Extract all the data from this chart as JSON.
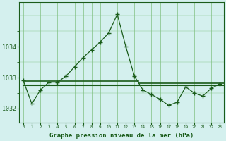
{
  "hours": [
    0,
    1,
    2,
    3,
    4,
    5,
    6,
    7,
    8,
    9,
    10,
    11,
    12,
    13,
    14,
    15,
    16,
    17,
    18,
    19,
    20,
    21,
    22,
    23
  ],
  "pressure": [
    1032.9,
    1032.15,
    1032.6,
    1032.85,
    1032.85,
    1033.05,
    1033.35,
    1033.65,
    1033.9,
    1034.15,
    1034.45,
    1035.05,
    1034.0,
    1033.05,
    1032.6,
    1032.45,
    1032.3,
    1032.1,
    1032.2,
    1032.7,
    1032.5,
    1032.4,
    1032.65,
    1032.8
  ],
  "line_color": "#1a5c1a",
  "bg_color": "#d4f0ee",
  "grid_color": "#80c080",
  "text_color": "#1a5c1a",
  "ylabel_ticks": [
    1032,
    1033,
    1034
  ],
  "ylim": [
    1031.55,
    1035.45
  ],
  "xlim": [
    -0.5,
    23.5
  ],
  "xlabel": "Graphe pression niveau de la mer (hPa)",
  "hline1_y": 1032.88,
  "hline1_xmin": 0,
  "hline1_xmax": 13.5,
  "hline2_y": 1032.74,
  "hline2_xmin": 0,
  "hline2_xmax": 23.5,
  "hline3_y": 1032.82,
  "hline3_xmin": 13.5,
  "hline3_xmax": 23.5
}
